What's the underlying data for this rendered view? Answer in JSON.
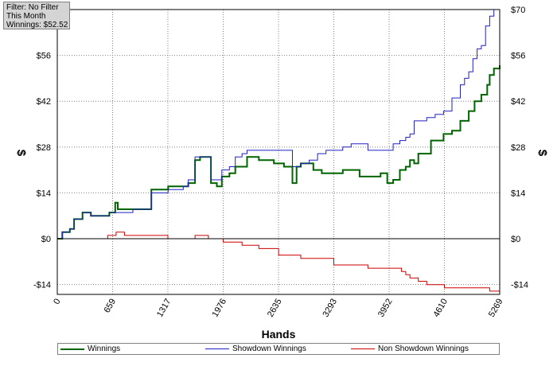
{
  "info_box": {
    "line1": "Filter: No Filter",
    "line2": "This Month",
    "line3": "Winnings: $52.52"
  },
  "chart_data": {
    "type": "line",
    "xlabel": "Hands",
    "ylabel": "$",
    "xlim": [
      0,
      5269
    ],
    "ylim": [
      -17,
      70
    ],
    "x_ticks": [
      0,
      659,
      1317,
      1976,
      2635,
      3293,
      3952,
      4610,
      5269
    ],
    "y_ticks": [
      0,
      14,
      28,
      42,
      56,
      70
    ],
    "y_tick_labels": [
      "$0",
      "$14",
      "$28",
      "$42",
      "$56",
      "$70"
    ],
    "extra_y_tick": -14,
    "extra_y_tick_label": "-$14",
    "grid": true,
    "legend_position": "bottom",
    "series": [
      {
        "name": "Winnings",
        "color": "#006400",
        "width": 2,
        "points": [
          [
            0,
            0
          ],
          [
            60,
            2
          ],
          [
            150,
            3
          ],
          [
            200,
            6
          ],
          [
            300,
            8
          ],
          [
            400,
            7
          ],
          [
            500,
            7
          ],
          [
            620,
            8
          ],
          [
            660,
            8
          ],
          [
            690,
            11
          ],
          [
            720,
            9
          ],
          [
            800,
            9
          ],
          [
            900,
            9
          ],
          [
            1100,
            9
          ],
          [
            1120,
            15
          ],
          [
            1300,
            15
          ],
          [
            1320,
            16
          ],
          [
            1500,
            16
          ],
          [
            1560,
            17
          ],
          [
            1640,
            24
          ],
          [
            1700,
            25
          ],
          [
            1800,
            25
          ],
          [
            1830,
            17
          ],
          [
            1900,
            16
          ],
          [
            1960,
            19
          ],
          [
            2050,
            20
          ],
          [
            2120,
            22
          ],
          [
            2200,
            22
          ],
          [
            2260,
            25
          ],
          [
            2400,
            24
          ],
          [
            2500,
            24
          ],
          [
            2580,
            23
          ],
          [
            2700,
            22
          ],
          [
            2800,
            17
          ],
          [
            2850,
            22
          ],
          [
            2900,
            23
          ],
          [
            3050,
            21
          ],
          [
            3150,
            20
          ],
          [
            3300,
            20
          ],
          [
            3400,
            21
          ],
          [
            3500,
            21
          ],
          [
            3600,
            19
          ],
          [
            3700,
            19
          ],
          [
            3850,
            20
          ],
          [
            3930,
            17
          ],
          [
            4000,
            18
          ],
          [
            4080,
            21
          ],
          [
            4150,
            22
          ],
          [
            4200,
            24
          ],
          [
            4250,
            23
          ],
          [
            4300,
            26
          ],
          [
            4400,
            26
          ],
          [
            4450,
            30
          ],
          [
            4550,
            30
          ],
          [
            4600,
            32
          ],
          [
            4700,
            33
          ],
          [
            4800,
            36
          ],
          [
            4900,
            39
          ],
          [
            4970,
            42
          ],
          [
            5050,
            44
          ],
          [
            5120,
            47
          ],
          [
            5150,
            50
          ],
          [
            5200,
            52
          ],
          [
            5269,
            53
          ]
        ]
      },
      {
        "name": "Showdown Winnings",
        "color": "#2020c0",
        "width": 1,
        "points": [
          [
            0,
            0
          ],
          [
            60,
            2
          ],
          [
            150,
            3
          ],
          [
            200,
            6
          ],
          [
            300,
            8
          ],
          [
            400,
            7
          ],
          [
            500,
            7
          ],
          [
            620,
            8
          ],
          [
            700,
            8
          ],
          [
            800,
            8
          ],
          [
            900,
            9
          ],
          [
            1100,
            9
          ],
          [
            1120,
            14
          ],
          [
            1300,
            14
          ],
          [
            1320,
            15
          ],
          [
            1500,
            16
          ],
          [
            1560,
            18
          ],
          [
            1640,
            25
          ],
          [
            1800,
            25
          ],
          [
            1830,
            18
          ],
          [
            1900,
            18
          ],
          [
            1960,
            21
          ],
          [
            2050,
            22
          ],
          [
            2120,
            25
          ],
          [
            2200,
            26
          ],
          [
            2260,
            27
          ],
          [
            2400,
            27
          ],
          [
            2550,
            27
          ],
          [
            2650,
            27
          ],
          [
            2750,
            27
          ],
          [
            2800,
            22
          ],
          [
            2900,
            23
          ],
          [
            3000,
            24
          ],
          [
            3100,
            26
          ],
          [
            3200,
            27
          ],
          [
            3300,
            27
          ],
          [
            3400,
            28
          ],
          [
            3500,
            29
          ],
          [
            3600,
            29
          ],
          [
            3700,
            27
          ],
          [
            3850,
            27
          ],
          [
            3950,
            27
          ],
          [
            4000,
            29
          ],
          [
            4080,
            30
          ],
          [
            4150,
            31
          ],
          [
            4200,
            32
          ],
          [
            4250,
            36
          ],
          [
            4300,
            36
          ],
          [
            4400,
            37
          ],
          [
            4500,
            38
          ],
          [
            4600,
            39
          ],
          [
            4700,
            43
          ],
          [
            4800,
            47
          ],
          [
            4850,
            49
          ],
          [
            4900,
            51
          ],
          [
            4950,
            55
          ],
          [
            5000,
            58
          ],
          [
            5050,
            59
          ],
          [
            5100,
            65
          ],
          [
            5150,
            68
          ],
          [
            5200,
            70
          ],
          [
            5269,
            70
          ]
        ]
      },
      {
        "name": "Non Showdown Winnings",
        "color": "#cc0000",
        "width": 1,
        "points": [
          [
            0,
            0
          ],
          [
            200,
            0
          ],
          [
            400,
            0
          ],
          [
            600,
            1
          ],
          [
            700,
            2
          ],
          [
            800,
            1
          ],
          [
            1000,
            1
          ],
          [
            1200,
            1
          ],
          [
            1317,
            0
          ],
          [
            1500,
            0
          ],
          [
            1640,
            1
          ],
          [
            1800,
            0
          ],
          [
            1976,
            -1
          ],
          [
            2200,
            -2
          ],
          [
            2400,
            -3
          ],
          [
            2635,
            -5
          ],
          [
            2900,
            -6
          ],
          [
            3293,
            -8
          ],
          [
            3500,
            -8
          ],
          [
            3700,
            -9
          ],
          [
            3900,
            -9
          ],
          [
            4000,
            -9
          ],
          [
            4100,
            -10
          ],
          [
            4150,
            -11
          ],
          [
            4200,
            -12
          ],
          [
            4300,
            -13
          ],
          [
            4400,
            -14
          ],
          [
            4610,
            -15
          ],
          [
            4800,
            -15
          ],
          [
            5000,
            -15
          ],
          [
            5150,
            -16
          ],
          [
            5269,
            -17
          ]
        ]
      }
    ]
  }
}
